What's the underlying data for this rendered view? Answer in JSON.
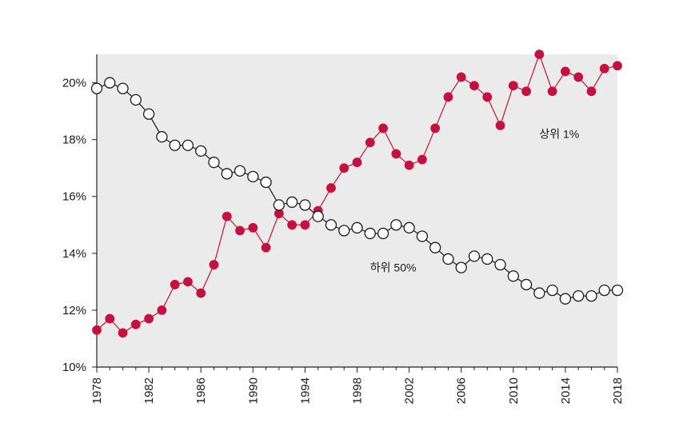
{
  "chart_data": {
    "type": "line",
    "title": "",
    "xlabel": "",
    "ylabel": "",
    "xlim": [
      1978,
      2018
    ],
    "ylim": [
      10,
      21
    ],
    "x_ticks": [
      1978,
      1982,
      1986,
      1990,
      1994,
      1998,
      2002,
      2006,
      2010,
      2014,
      2018
    ],
    "x_tick_labels": [
      "1978",
      "1982",
      "1986",
      "1990",
      "1994",
      "1998",
      "2002",
      "2006",
      "2010",
      "2014",
      "2018"
    ],
    "y_ticks": [
      10,
      12,
      14,
      16,
      18,
      20
    ],
    "y_tick_labels": [
      "10%",
      "12%",
      "14%",
      "16%",
      "18%",
      "20%"
    ],
    "grid": false,
    "x": [
      1978,
      1979,
      1980,
      1981,
      1982,
      1983,
      1984,
      1985,
      1986,
      1987,
      1988,
      1989,
      1990,
      1991,
      1992,
      1993,
      1994,
      1995,
      1996,
      1997,
      1998,
      1999,
      2000,
      2001,
      2002,
      2003,
      2004,
      2005,
      2006,
      2007,
      2008,
      2009,
      2010,
      2011,
      2012,
      2013,
      2014,
      2015,
      2016,
      2017,
      2018
    ],
    "series": [
      {
        "name": "상위 1%",
        "color": "#c8103e",
        "marker": "filled-circle",
        "label_at": [
          2012,
          18.2
        ],
        "values": [
          11.3,
          11.7,
          11.2,
          11.5,
          11.7,
          12.0,
          12.9,
          13.0,
          12.6,
          13.6,
          15.3,
          14.8,
          14.9,
          14.2,
          15.4,
          15.0,
          15.0,
          15.5,
          16.3,
          17.0,
          17.2,
          17.9,
          18.4,
          17.5,
          17.1,
          17.3,
          18.4,
          19.5,
          20.2,
          19.9,
          19.5,
          18.5,
          19.9,
          19.7,
          21.0,
          19.7,
          20.4,
          20.2,
          19.7,
          20.5,
          20.6
        ]
      },
      {
        "name": "하위 50%",
        "color": "#1a1a1a",
        "marker": "open-circle",
        "label_at": [
          1999,
          13.5
        ],
        "values": [
          19.8,
          20.0,
          19.8,
          19.4,
          18.9,
          18.1,
          17.8,
          17.8,
          17.6,
          17.2,
          16.8,
          16.9,
          16.7,
          16.5,
          15.7,
          15.8,
          15.7,
          15.3,
          15.0,
          14.8,
          14.9,
          14.7,
          14.7,
          15.0,
          14.9,
          14.6,
          14.2,
          13.8,
          13.5,
          13.9,
          13.8,
          13.6,
          13.2,
          12.9,
          12.6,
          12.7,
          12.4,
          12.5,
          12.5,
          12.7,
          12.7
        ]
      }
    ]
  }
}
